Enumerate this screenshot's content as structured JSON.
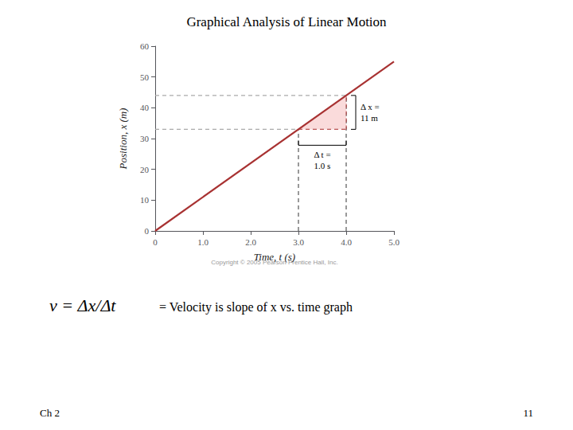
{
  "chart_data": {
    "type": "line",
    "title": "Graphical Analysis of Linear Motion",
    "xlabel": "Time, t (s)",
    "ylabel": "Position, x (m)",
    "xlim": [
      0,
      5.0
    ],
    "ylim": [
      0,
      60
    ],
    "xticks": [
      0,
      {
        "value": 1.0,
        "label": "1.0"
      },
      {
        "value": 2.0,
        "label": "2.0"
      },
      {
        "value": 3.0,
        "label": "3.0"
      },
      {
        "value": 4.0,
        "label": "4.0"
      },
      {
        "value": 5.0,
        "label": "5.0"
      }
    ],
    "yticks": [
      0,
      10,
      20,
      30,
      40,
      50,
      60
    ],
    "grid": false,
    "series": [
      {
        "type": "line",
        "x": [
          0,
          5.0
        ],
        "values": [
          0,
          55.0
        ],
        "color": "#a83232",
        "line_style": "solid"
      },
      {
        "type": "area",
        "x": [
          3.0,
          4.0,
          4.0
        ],
        "values": [
          33.0,
          33.0,
          44.0
        ],
        "color": "#f5b8b8"
      },
      {
        "type": "line",
        "x": [
          0,
          4.0
        ],
        "values": [
          33.0,
          33.0
        ],
        "color": "#aaaaaa",
        "line_style": "dashed"
      },
      {
        "type": "line",
        "x": [
          0,
          4.0
        ],
        "values": [
          44.0,
          44.0
        ],
        "color": "#aaaaaa",
        "line_style": "dashed"
      },
      {
        "type": "line",
        "x": [
          3.0,
          3.0
        ],
        "values": [
          0,
          33.0
        ],
        "color": "#555555",
        "line_style": "dashed"
      },
      {
        "type": "line",
        "x": [
          4.0,
          4.0
        ],
        "values": [
          0,
          44.0
        ],
        "color": "#555555",
        "line_style": "dashed"
      },
      {
        "type": "line",
        "x": [
          3.0,
          4.0
        ],
        "values": [
          33.0,
          33.0
        ],
        "color": "#a83232",
        "line_style": "dashed"
      },
      {
        "type": "line",
        "x": [
          4.0,
          4.0
        ],
        "values": [
          33.0,
          44.0
        ],
        "color": "#a83232",
        "line_style": "dashed"
      }
    ],
    "annotations": [
      {
        "text": "Δ x =\n11 m"
      },
      {
        "text": "Δ t =\n1.0 s"
      }
    ],
    "formula": "v = Δx/Δt",
    "caption": "= Velocity is slope of x vs. time graph",
    "copyright": "Copyright © 2005 Pearson Prentice Hall, Inc.",
    "footer_left": "Ch 2",
    "footer_right": "11"
  }
}
